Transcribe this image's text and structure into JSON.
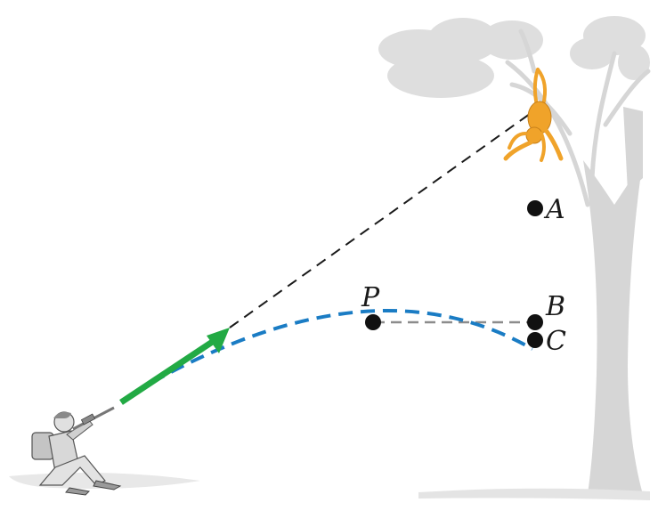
{
  "labels": {
    "A": "A",
    "B": "B",
    "C": "C",
    "P": "P"
  },
  "colors": {
    "background": "#ffffff",
    "tree": "#dcdcdc",
    "ground": "#e6e6e6",
    "trajectory": "#1a7cc4",
    "sight_line": "#1a1a1a",
    "horizontal_line": "#8c8c8c",
    "velocity_arrow": "#22aa44",
    "monkey": "#f0a32a",
    "hunter": "#c8c8c8",
    "points": "#111111"
  },
  "icons": [
    "tree-icon",
    "monkey-icon",
    "hunter-icon",
    "velocity-arrow-icon"
  ]
}
